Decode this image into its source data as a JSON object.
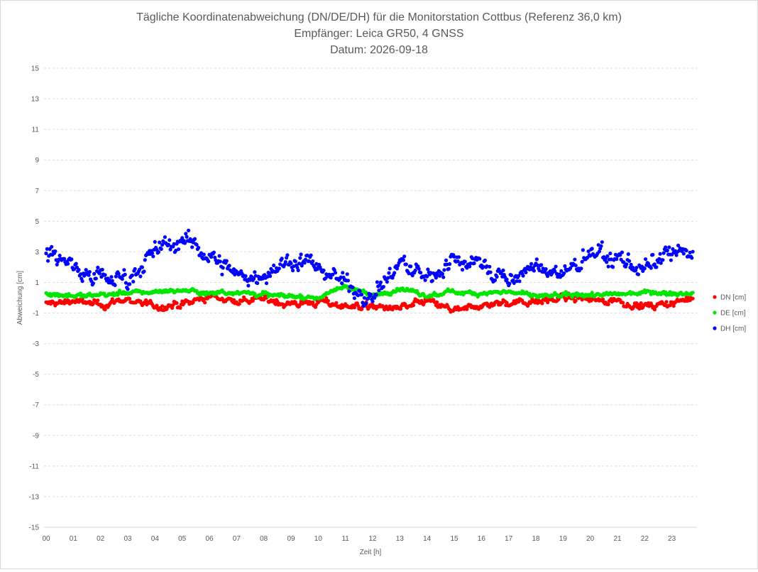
{
  "chart_data": {
    "type": "scatter",
    "title_lines": [
      "Tägliche Koordinatenabweichung (DN/DE/DH) für die Monitorstation Cottbus (Referenz 36,0 km)",
      "Empfänger: Leica GR50, 4 GNSS",
      "Datum: 2026-09-18"
    ],
    "xlabel": "Zeit [h]",
    "ylabel": "Abweichung [cm]",
    "xlim": [
      0,
      24
    ],
    "ylim": [
      -15,
      15
    ],
    "x_ticks": [
      "00",
      "01",
      "02",
      "03",
      "04",
      "05",
      "06",
      "07",
      "08",
      "09",
      "10",
      "11",
      "12",
      "13",
      "14",
      "15",
      "16",
      "17",
      "18",
      "19",
      "20",
      "21",
      "22",
      "23"
    ],
    "y_ticks": [
      "15",
      "13",
      "11",
      "9",
      "7",
      "5",
      "3",
      "1",
      "-1",
      "-3",
      "-5",
      "-7",
      "-9",
      "-11",
      "-13",
      "-15"
    ],
    "grid": true,
    "legend_position": "right",
    "sample_interval_min": 2,
    "series": [
      {
        "name": "DN [cm]",
        "color": "#ff0000",
        "anchors_x": [
          0,
          1,
          2,
          3,
          4,
          5,
          6,
          7,
          8,
          9,
          10,
          11,
          12,
          13,
          14,
          15,
          16,
          17,
          18,
          19,
          20,
          21,
          22,
          23,
          23.8
        ],
        "anchors_y": [
          -0.4,
          -0.2,
          -0.5,
          -0.1,
          -0.6,
          -0.5,
          0.1,
          -0.2,
          -0.1,
          -0.4,
          -0.3,
          -0.5,
          -0.6,
          -0.7,
          -0.2,
          -0.9,
          -0.5,
          -0.3,
          -0.2,
          0.0,
          -0.1,
          -0.2,
          -0.6,
          -0.4,
          0.0
        ],
        "noise": 0.4
      },
      {
        "name": "DE [cm]",
        "color": "#00e600",
        "anchors_x": [
          0,
          1,
          2,
          3,
          4,
          5,
          6,
          7,
          8,
          9,
          10,
          11,
          12,
          13,
          14,
          15,
          16,
          17,
          18,
          19,
          20,
          21,
          22,
          23,
          23.8
        ],
        "anchors_y": [
          0.3,
          0.1,
          0.2,
          0.3,
          0.4,
          0.5,
          0.3,
          0.4,
          0.2,
          0.1,
          0.0,
          0.8,
          0.1,
          0.6,
          0.1,
          0.4,
          0.3,
          0.4,
          0.1,
          0.1,
          0.2,
          0.2,
          0.4,
          0.3,
          0.3
        ],
        "noise": 0.25
      },
      {
        "name": "DH [cm]",
        "color": "#0000ff",
        "anchors_x": [
          0,
          1,
          2,
          3,
          4,
          5,
          6,
          7,
          8,
          9,
          10,
          11,
          12,
          13,
          14,
          15,
          16,
          17,
          18,
          19,
          20,
          21,
          22,
          23,
          23.8
        ],
        "anchors_y": [
          3.0,
          2.2,
          1.3,
          1.3,
          3.0,
          3.8,
          2.8,
          1.5,
          1.4,
          2.5,
          2.0,
          1.0,
          0.0,
          2.3,
          1.2,
          2.5,
          2.3,
          1.0,
          2.0,
          1.5,
          2.8,
          2.6,
          1.8,
          2.8,
          3.2
        ],
        "noise": 1.0
      }
    ]
  }
}
